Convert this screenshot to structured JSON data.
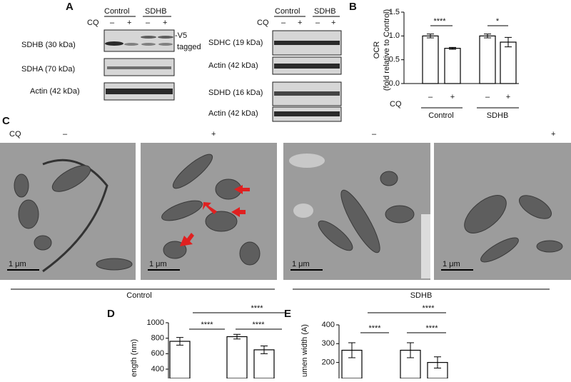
{
  "panel_letters": [
    "A",
    "B",
    "C",
    "D",
    "E"
  ],
  "blot_left": {
    "groups": [
      "Control",
      "SDHB"
    ],
    "cq": "CQ",
    "conditions": [
      "–",
      "+",
      "–",
      "+"
    ],
    "rows": [
      "SDHB (30 kDa)",
      "SDHA (70 kDa)",
      "Actin (42 kDa)"
    ],
    "tag": [
      "-V5",
      "tagged"
    ]
  },
  "blot_right": {
    "groups": [
      "Control",
      "SDHB"
    ],
    "cq": "CQ",
    "conditions": [
      "–",
      "+",
      "–",
      "+"
    ],
    "rows": [
      "SDHC (19 kDa)",
      "Actin (42 kDa)",
      "SDHD (16 kDa)",
      "Actin (42 kDa)"
    ]
  },
  "micrographs": {
    "cq": "CQ",
    "conditions": [
      "–",
      "+",
      "–",
      "+"
    ],
    "scale_bars": [
      "1 μm",
      "1 μm",
      "1 μm",
      "1 μm"
    ],
    "groups": [
      "Control",
      "SDHB"
    ]
  },
  "chart_data": [
    {
      "type": "bar",
      "y_label": [
        "OCR",
        "(fold relative to Control)"
      ],
      "x_label": "CQ",
      "categories": [
        "–",
        "+",
        "–",
        "+"
      ],
      "groups": [
        "Control",
        "SDHB"
      ],
      "values": [
        1.0,
        0.74,
        1.0,
        0.87
      ],
      "errors": [
        0.04,
        0.02,
        0.04,
        0.1
      ],
      "color": "#ffffff",
      "ylim": [
        0,
        1.5
      ],
      "yticks": [
        {
          "value": 0,
          "label": "0.0"
        },
        0.5,
        {
          "value": 1,
          "label": "1.0"
        },
        1.5
      ],
      "annotations": [
        "****",
        "*"
      ]
    },
    {
      "type": "bar",
      "y_label": "ength (nm)",
      "categories": [
        null,
        null,
        null,
        null
      ],
      "values": [
        760,
        null,
        820,
        650
      ],
      "errors": [
        50,
        null,
        30,
        50
      ],
      "color": "#ffffff",
      "ylim": [
        280,
        1000
      ],
      "yticks": [
        400,
        600,
        800,
        1000
      ],
      "annotations": [
        "****",
        "****",
        "****"
      ]
    },
    {
      "type": "bar",
      "y_label": "umen width (A)",
      "categories": [
        null,
        null,
        null,
        null
      ],
      "values": [
        265,
        null,
        265,
        200
      ],
      "errors": [
        40,
        null,
        40,
        30
      ],
      "color": "#ffffff",
      "ylim": [
        115,
        400
      ],
      "yticks": [
        200,
        300,
        400
      ],
      "annotations": [
        "****",
        "****",
        "****"
      ]
    }
  ]
}
